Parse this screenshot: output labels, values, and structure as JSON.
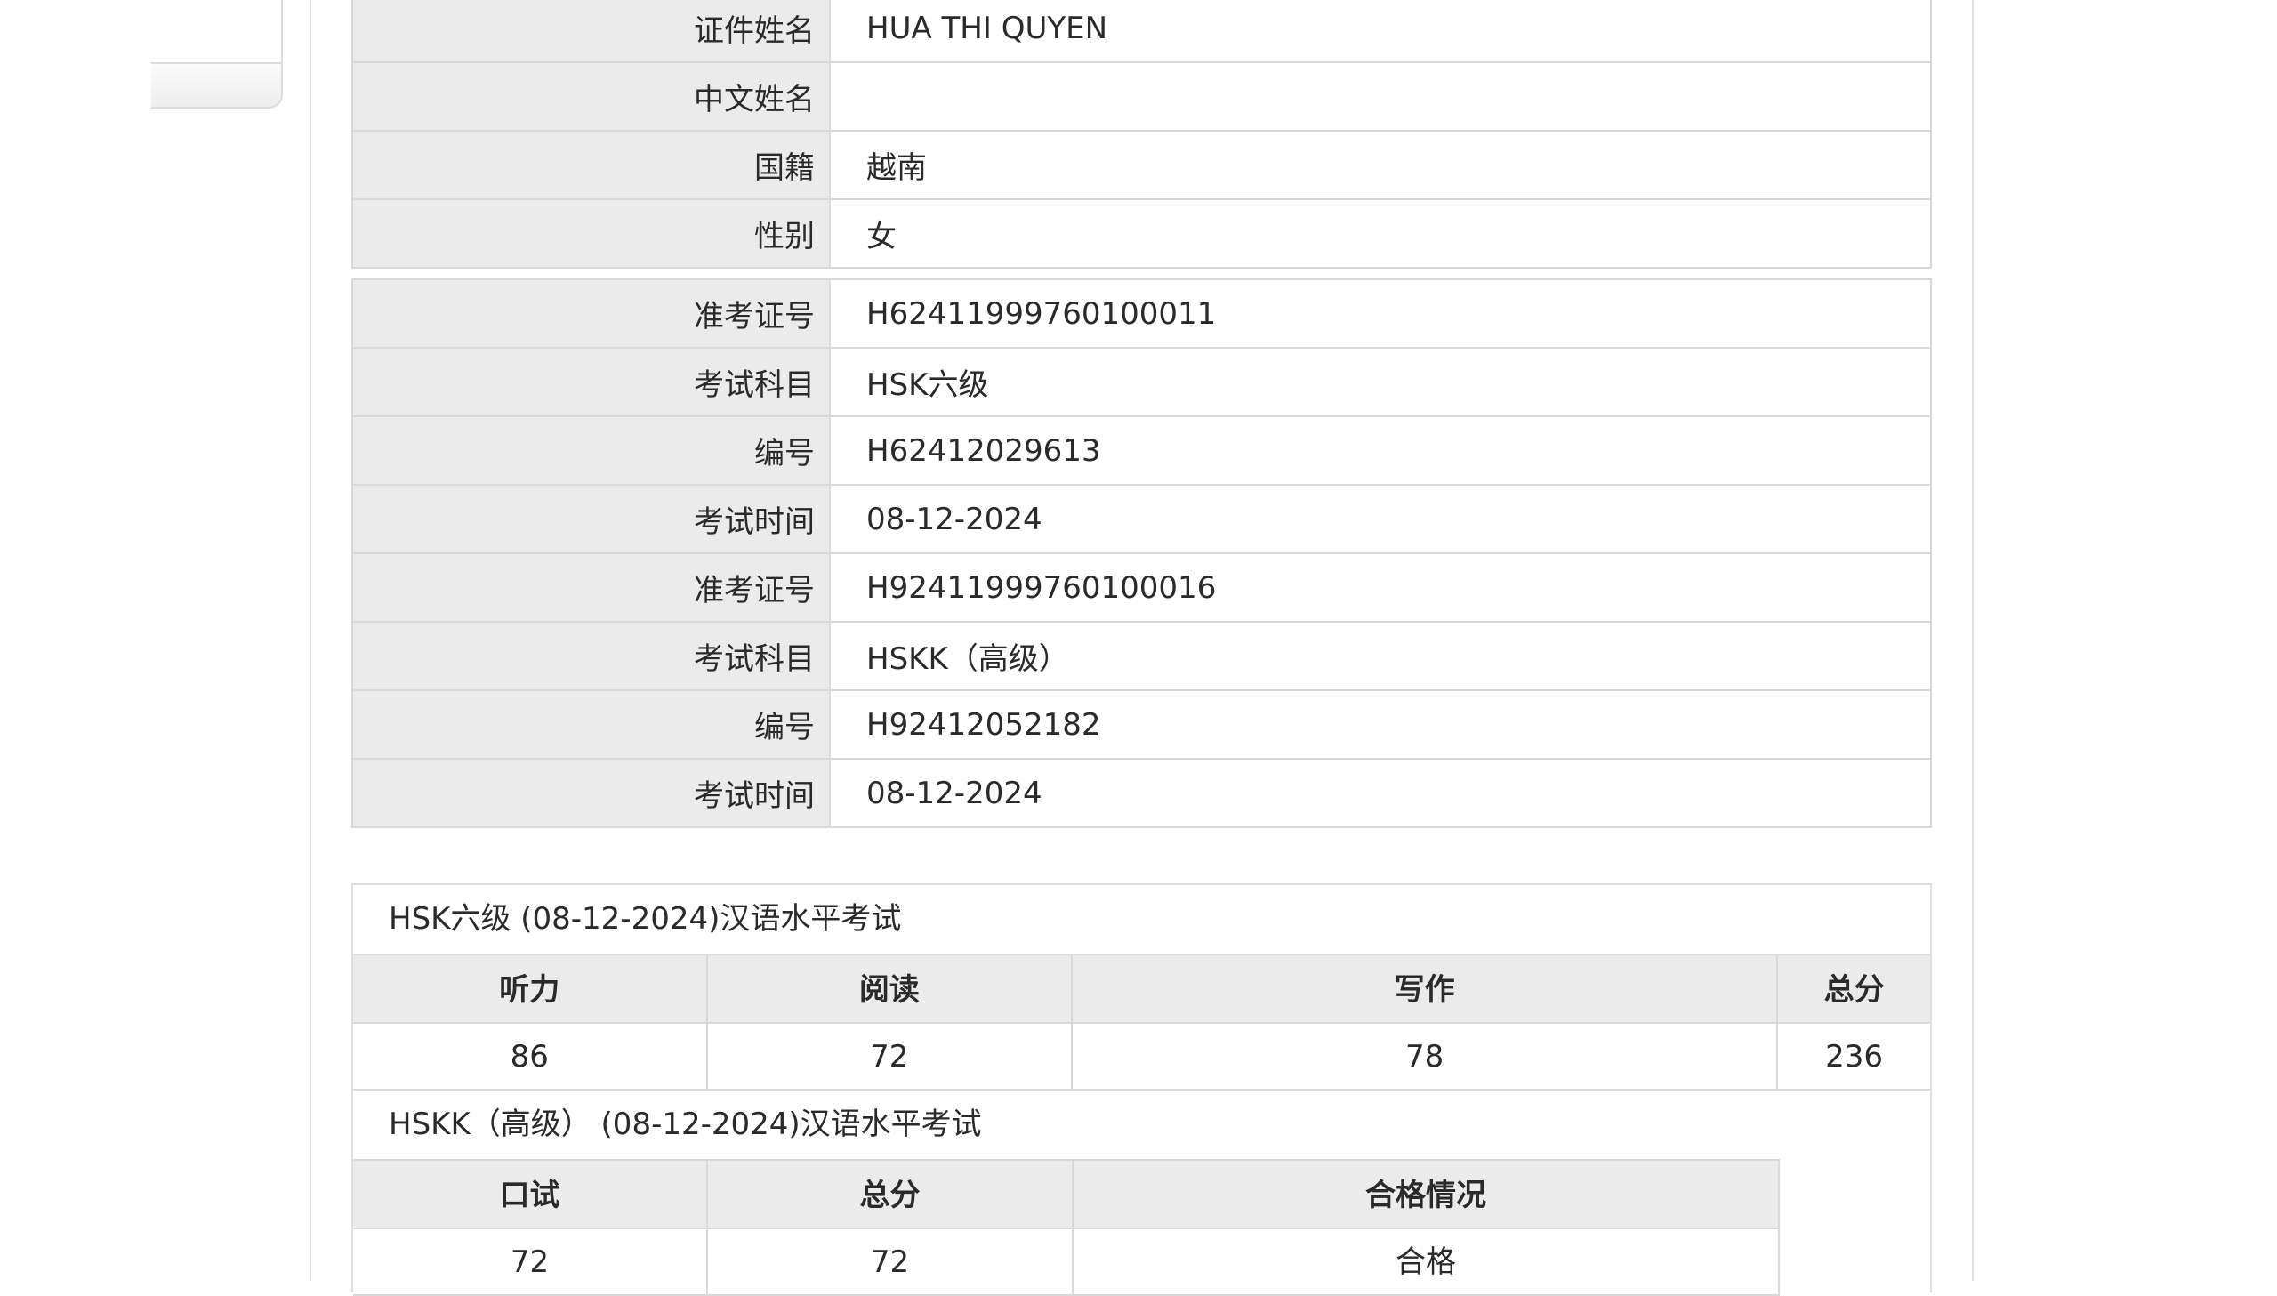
{
  "personal": [
    {
      "label": "证件姓名",
      "value": "HUA THI QUYEN"
    },
    {
      "label": "中文姓名",
      "value": ""
    },
    {
      "label": "国籍",
      "value": "越南"
    },
    {
      "label": "性别",
      "value": "女"
    }
  ],
  "exams": [
    {
      "label": "准考证号",
      "value": "H62411999760100011"
    },
    {
      "label": "考试科目",
      "value": "HSK六级"
    },
    {
      "label": "编号",
      "value": "H62412029613"
    },
    {
      "label": "考试时间",
      "value": "08-12-2024"
    },
    {
      "label": "准考证号",
      "value": "H92411999760100016"
    },
    {
      "label": "考试科目",
      "value": "HSKK（高级）"
    },
    {
      "label": "编号",
      "value": "H92412052182"
    },
    {
      "label": "考试时间",
      "value": "08-12-2024"
    }
  ],
  "hsk": {
    "caption": "HSK六级 (08-12-2024)汉语水平考试",
    "headers": [
      "听力",
      "阅读",
      "写作",
      "总分"
    ],
    "values": [
      "86",
      "72",
      "78",
      "236"
    ]
  },
  "hskk": {
    "caption": "HSKK（高级） (08-12-2024)汉语水平考试",
    "headers": [
      "口试",
      "总分",
      "合格情况"
    ],
    "values": [
      "72",
      "72",
      "合格"
    ]
  }
}
